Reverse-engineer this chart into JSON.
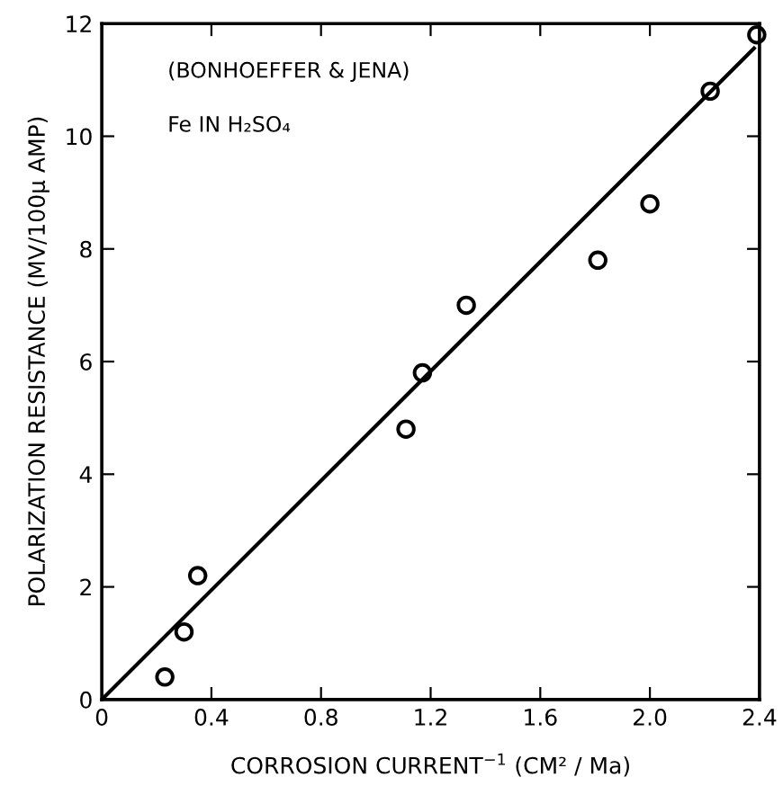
{
  "chart_data": {
    "type": "scatter",
    "xlabel": "CORROSION CURRENT$^{−1}$ (CM² / Ma)",
    "ylabel": "POLARIZATION RESISTANCE (MV/100µ AMP)",
    "annotations": [
      "(BONHOEFFER & JENA)",
      "Fe IN H₂SO₄"
    ],
    "series": [
      {
        "color": "#000000",
        "marker": "circle",
        "x": [
          0.23,
          0.3,
          0.35,
          1.11,
          1.17,
          1.33,
          1.81,
          2.0,
          2.22,
          2.39
        ],
        "values": [
          0.4,
          1.2,
          2.2,
          4.8,
          5.8,
          7.0,
          7.8,
          8.8,
          10.8,
          11.8
        ]
      },
      {
        "type": "line",
        "color": "#000000",
        "marker": "none",
        "line_style": "solid",
        "x": [
          0,
          2.38
        ],
        "values": [
          0,
          11.56
        ]
      }
    ],
    "xlim": [
      0,
      2.4
    ],
    "ylim": [
      0,
      12
    ],
    "xticks": [
      0,
      0.4,
      0.8,
      1.2,
      1.6,
      {
        "value": 2.0,
        "label": "2.0"
      },
      2.4
    ],
    "yticks": [
      0,
      2,
      4,
      6,
      8,
      10,
      12
    ],
    "grid": false,
    "legend": false
  }
}
